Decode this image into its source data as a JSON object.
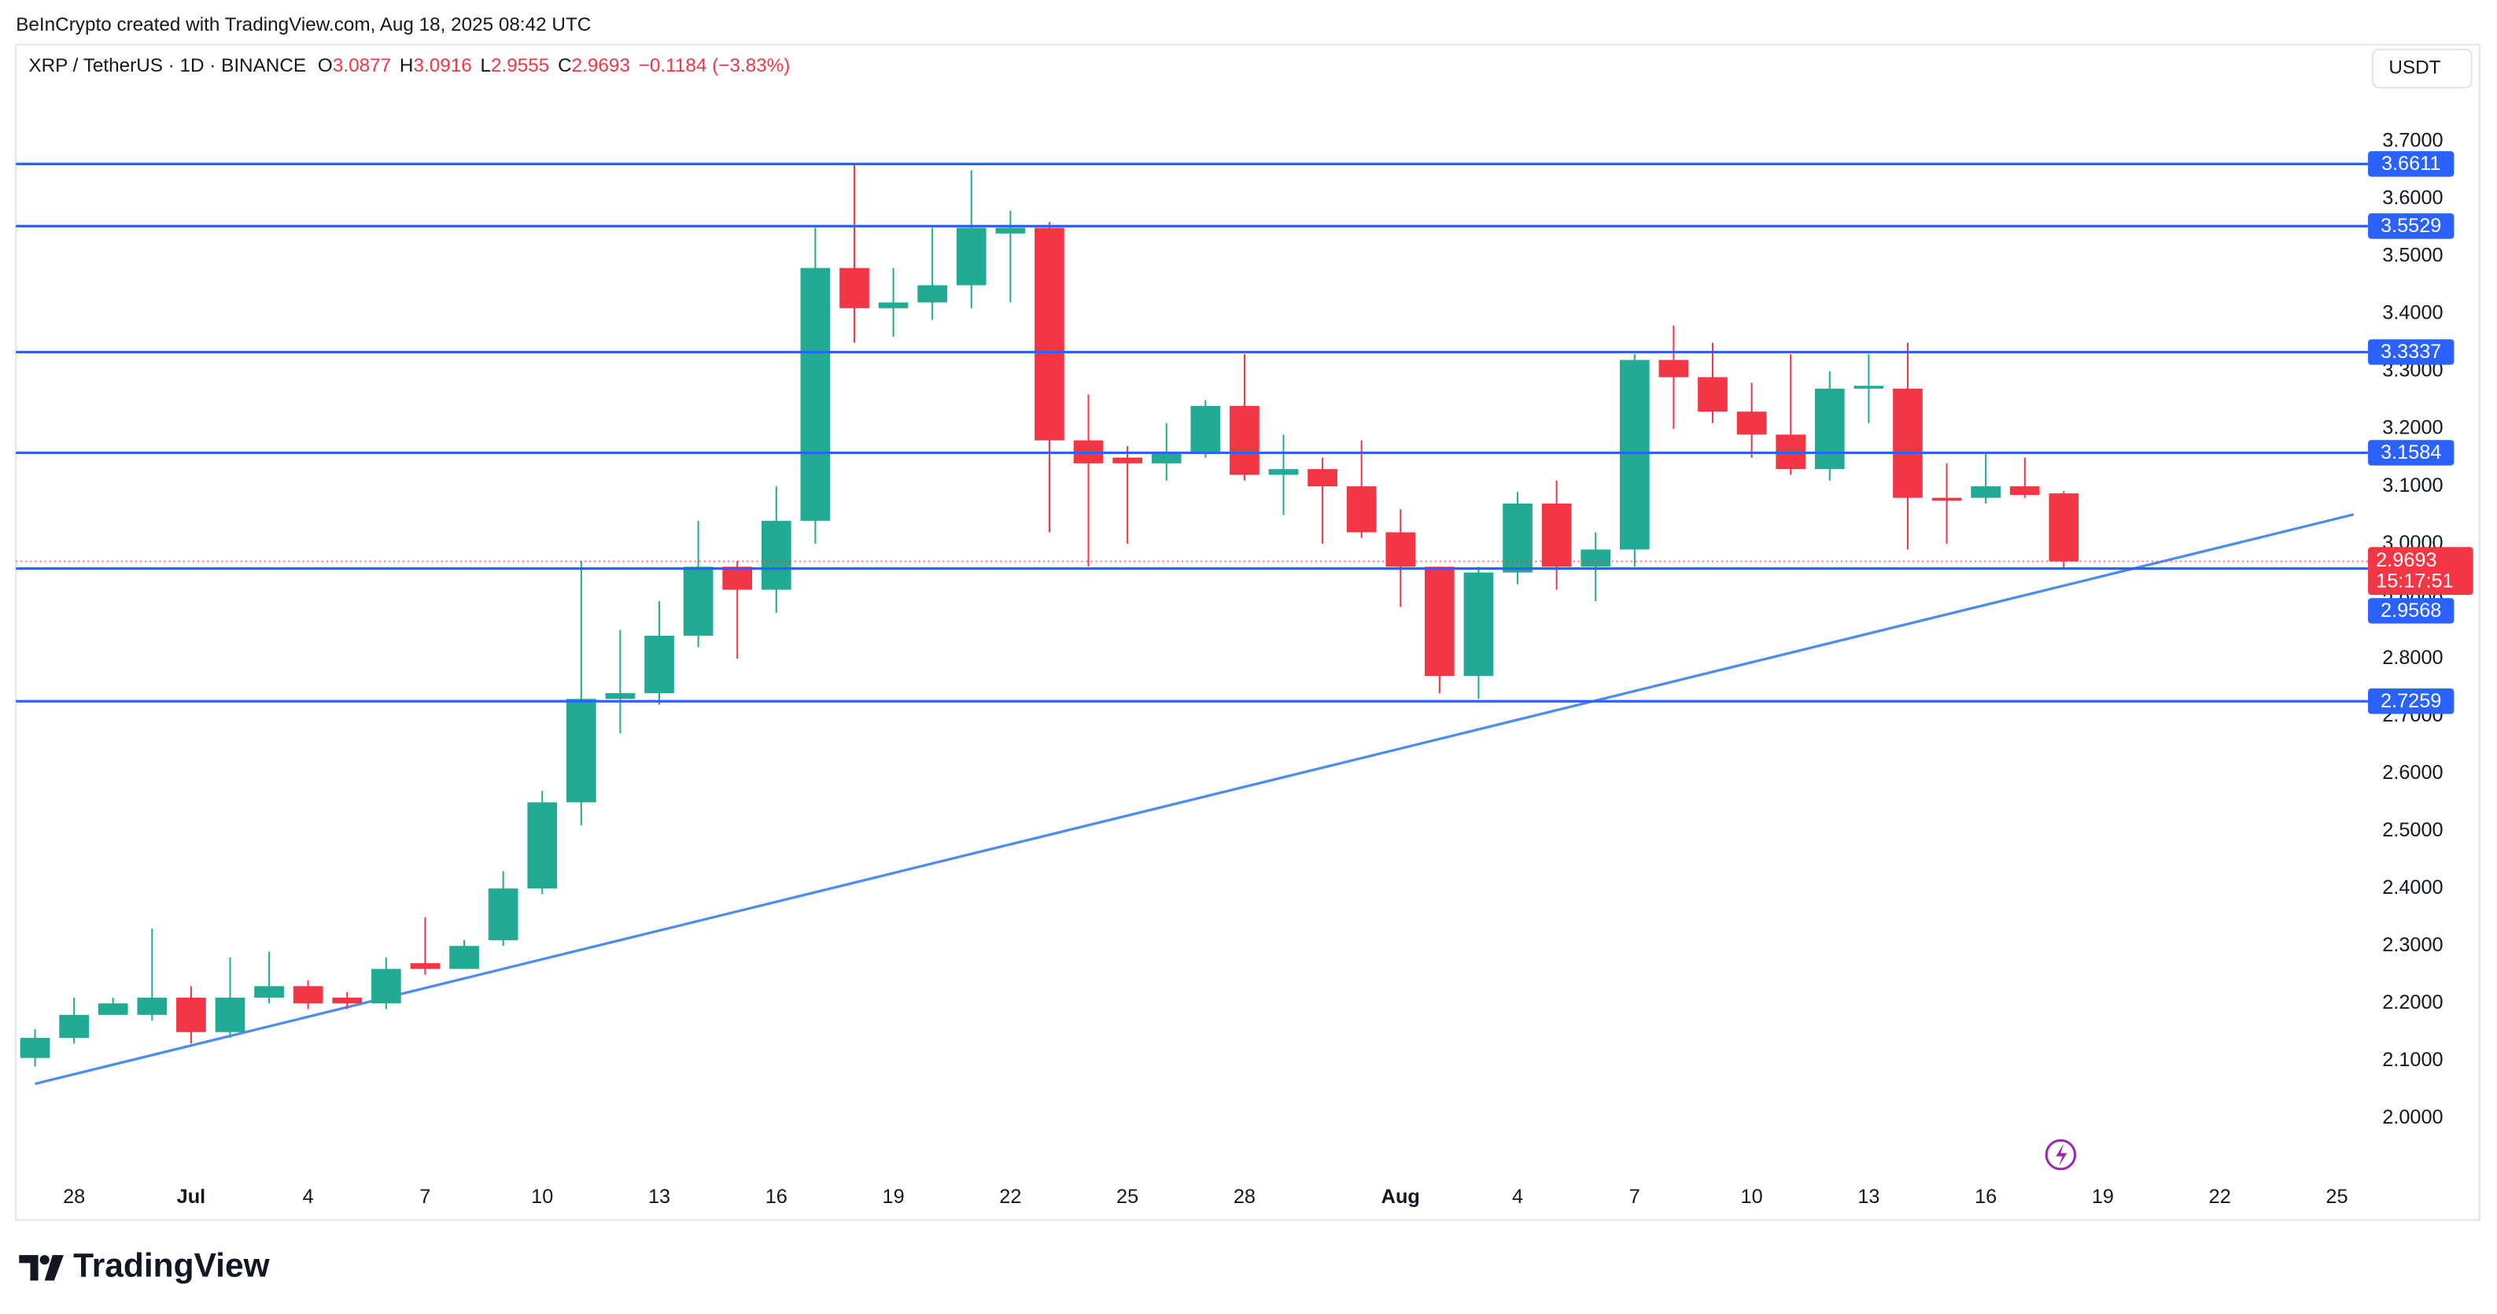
{
  "header": {
    "credit": "BeInCrypto created with TradingView.com, Aug 18, 2025 08:42 UTC",
    "symbol": "XRP / TetherUS · 1D · BINANCE",
    "open_label": "O",
    "open": "3.0877",
    "high_label": "H",
    "high": "3.0916",
    "low_label": "L",
    "low": "2.9555",
    "close_label": "C",
    "close": "2.9693",
    "change": "−0.1184",
    "change_pct": "(−3.83%)"
  },
  "currency": "USDT",
  "brand": "TradingView",
  "chart_data": {
    "type": "candlestick",
    "x": [
      0,
      1,
      2,
      3,
      4,
      5,
      6,
      7,
      8,
      9,
      10,
      11,
      12,
      13,
      14,
      15,
      16,
      17,
      18,
      19,
      20,
      21,
      22,
      23,
      24,
      25,
      26,
      27,
      28,
      29,
      30,
      31,
      32,
      33,
      34,
      35,
      36,
      37,
      38,
      39,
      40,
      41,
      42,
      43,
      44,
      45,
      46,
      47,
      48,
      49,
      50,
      51,
      52
    ],
    "open": [
      2.105,
      2.14,
      2.18,
      2.18,
      2.21,
      2.15,
      2.21,
      2.23,
      2.21,
      2.2,
      2.27,
      2.26,
      2.31,
      2.4,
      2.55,
      2.73,
      2.74,
      2.84,
      2.96,
      2.92,
      3.04,
      3.48,
      3.41,
      3.42,
      3.45,
      3.54,
      3.55,
      3.18,
      3.15,
      3.14,
      3.16,
      3.24,
      3.12,
      3.13,
      3.1,
      3.02,
      2.96,
      2.77,
      2.95,
      3.07,
      2.96,
      2.99,
      3.32,
      3.29,
      3.23,
      3.19,
      3.13,
      3.27,
      3.27,
      3.08,
      3.08,
      3.1,
      3.0877
    ],
    "high": [
      2.155,
      2.21,
      2.21,
      2.33,
      2.23,
      2.28,
      2.29,
      2.24,
      2.22,
      2.28,
      2.35,
      2.31,
      2.43,
      2.57,
      2.97,
      2.85,
      2.9,
      3.04,
      2.97,
      3.1,
      3.55,
      3.66,
      3.48,
      3.55,
      3.65,
      3.58,
      3.56,
      3.26,
      3.17,
      3.21,
      3.25,
      3.33,
      3.19,
      3.15,
      3.18,
      3.06,
      2.96,
      2.96,
      3.09,
      3.11,
      3.02,
      3.33,
      3.38,
      3.35,
      3.28,
      3.33,
      3.3,
      3.33,
      3.35,
      3.14,
      3.16,
      3.15,
      3.0916
    ],
    "low": [
      2.09,
      2.13,
      2.18,
      2.17,
      2.13,
      2.14,
      2.2,
      2.19,
      2.19,
      2.19,
      2.25,
      2.26,
      2.3,
      2.39,
      2.51,
      2.67,
      2.72,
      2.82,
      2.8,
      2.88,
      3.0,
      3.35,
      3.36,
      3.39,
      3.41,
      3.42,
      3.02,
      2.96,
      3.0,
      3.11,
      3.15,
      3.11,
      3.05,
      3.0,
      3.01,
      2.89,
      2.74,
      2.73,
      2.93,
      2.92,
      2.9,
      2.96,
      3.2,
      3.21,
      3.15,
      3.12,
      3.11,
      3.21,
      2.99,
      3.0,
      3.07,
      3.08,
      2.9555
    ],
    "close": [
      2.14,
      2.18,
      2.2,
      2.21,
      2.15,
      2.21,
      2.23,
      2.2,
      2.2,
      2.26,
      2.26,
      2.3,
      2.4,
      2.55,
      2.73,
      2.74,
      2.84,
      2.96,
      2.92,
      3.04,
      3.48,
      3.41,
      3.42,
      3.45,
      3.55,
      3.55,
      3.18,
      3.14,
      3.14,
      3.16,
      3.24,
      3.12,
      3.13,
      3.1,
      3.02,
      2.96,
      2.77,
      2.95,
      3.07,
      2.96,
      2.99,
      3.32,
      3.29,
      3.23,
      3.19,
      3.13,
      3.27,
      3.275,
      3.08,
      3.075,
      3.1,
      3.085,
      2.9693
    ],
    "up_color": "#22ab94",
    "down_color": "#f23645",
    "xlim": [
      -0.49,
      59.43
    ],
    "xticks": [
      {
        "value": 1,
        "label": "28"
      },
      {
        "value": 4,
        "label": "Jul"
      },
      {
        "value": 7,
        "label": "4"
      },
      {
        "value": 10,
        "label": "7"
      },
      {
        "value": 13,
        "label": "10"
      },
      {
        "value": 16,
        "label": "13"
      },
      {
        "value": 19,
        "label": "16"
      },
      {
        "value": 22,
        "label": "19"
      },
      {
        "value": 25,
        "label": "22"
      },
      {
        "value": 28,
        "label": "25"
      },
      {
        "value": 31,
        "label": "28"
      },
      {
        "value": 35,
        "label": "Aug"
      },
      {
        "value": 38,
        "label": "4"
      },
      {
        "value": 41,
        "label": "7"
      },
      {
        "value": 44,
        "label": "10"
      },
      {
        "value": 47,
        "label": "13"
      },
      {
        "value": 50,
        "label": "16"
      },
      {
        "value": 53,
        "label": "19"
      },
      {
        "value": 56,
        "label": "22"
      },
      {
        "value": 59,
        "label": "25"
      }
    ],
    "ylim": [
      1.895,
      3.794
    ],
    "yticks": [
      {
        "value": 2.0,
        "label": "2.0000"
      },
      {
        "value": 2.1,
        "label": "2.1000"
      },
      {
        "value": 2.2,
        "label": "2.2000"
      },
      {
        "value": 2.3,
        "label": "2.3000"
      },
      {
        "value": 2.4,
        "label": "2.4000"
      },
      {
        "value": 2.5,
        "label": "2.5000"
      },
      {
        "value": 2.6,
        "label": "2.6000"
      },
      {
        "value": 2.7,
        "label": "2.7000"
      },
      {
        "value": 2.8,
        "label": "2.8000"
      },
      {
        "value": 2.9,
        "label": "2.9000"
      },
      {
        "value": 3.0,
        "label": "3.0000"
      },
      {
        "value": 3.1,
        "label": "3.1000"
      },
      {
        "value": 3.2,
        "label": "3.2000"
      },
      {
        "value": 3.3,
        "label": "3.3000"
      },
      {
        "value": 3.4,
        "label": "3.4000"
      },
      {
        "value": 3.5,
        "label": "3.5000"
      },
      {
        "value": 3.6,
        "label": "3.6000"
      },
      {
        "value": 3.7,
        "label": "3.7000"
      }
    ],
    "grid": false,
    "levels": [
      {
        "value": 3.6611,
        "color": "#2962ff"
      },
      {
        "value": 3.5529,
        "color": "#2962ff"
      },
      {
        "value": 3.3337,
        "color": "#2962ff"
      },
      {
        "value": 3.1584,
        "color": "#2962ff"
      },
      {
        "value": 2.9568,
        "color": "#2962ff"
      },
      {
        "value": 2.7259,
        "color": "#2962ff"
      }
    ],
    "trendline": {
      "x": [
        0,
        59.43
      ],
      "y": [
        2.06,
        3.051
      ],
      "color": "#4a8cf0"
    },
    "last_price": {
      "value": 2.9693,
      "countdown": "15:17:51",
      "color": "#f23645"
    }
  }
}
